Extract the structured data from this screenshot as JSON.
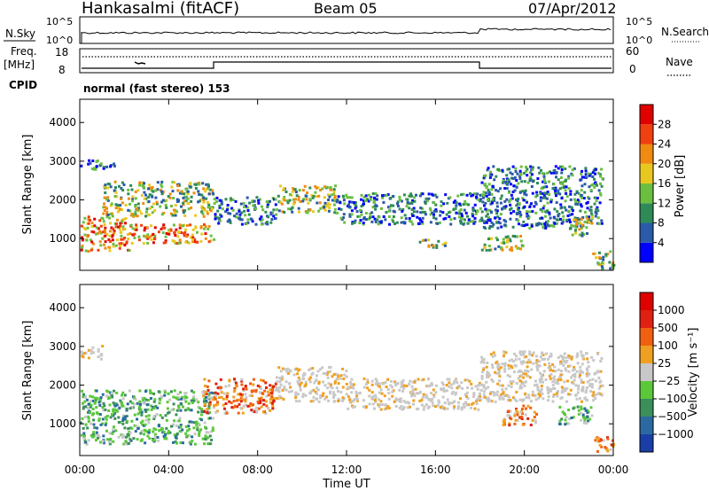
{
  "header": {
    "station": "Hankasalmi (fitACF)",
    "beam": "Beam 05",
    "date": "07/Apr/2012"
  },
  "noise_panel": {
    "left_label": "N.Sky",
    "left_ticks": [
      "10^5",
      "10^0"
    ],
    "right_ticks": [
      "10^5",
      "10^0"
    ],
    "right_label": "N.Search"
  },
  "freq_panel": {
    "left_label_1": "Freq.",
    "left_label_2": "[MHz]",
    "left_ticks": [
      "18",
      "8"
    ],
    "right_ticks": [
      "60",
      "0"
    ],
    "right_label": "Nave",
    "cpid_label": "CPID",
    "mode_text": "normal (fast stereo) 153"
  },
  "chart_data": [
    {
      "type": "heatmap",
      "name": "power",
      "ylabel": "Slant Range [km]",
      "ylim": [
        180,
        4600
      ],
      "yticks": [
        "1000",
        "2000",
        "3000",
        "4000"
      ],
      "xlim_hours": [
        0,
        24
      ],
      "colorbar_label": "Power [dB]",
      "colorbar_ticks": [
        "4",
        "8",
        "12",
        "16",
        "20",
        "24",
        "28"
      ],
      "colorbar_colors": [
        "#0000ff",
        "#2a5aa8",
        "#2e8b57",
        "#6abf40",
        "#e8c820",
        "#f08a10",
        "#f04010",
        "#e00000"
      ],
      "regions": [
        {
          "t": [
            0.0,
            2.2
          ],
          "r": [
            700,
            1600
          ],
          "level": "high"
        },
        {
          "t": [
            2.2,
            6.0
          ],
          "r": [
            900,
            1400
          ],
          "level": "high"
        },
        {
          "t": [
            0.0,
            1.6
          ],
          "r": [
            2800,
            3050
          ],
          "level": "low"
        },
        {
          "t": [
            1.0,
            6.0
          ],
          "r": [
            1600,
            2500
          ],
          "level": "mid"
        },
        {
          "t": [
            6.0,
            8.8
          ],
          "r": [
            1400,
            2100
          ],
          "level": "low"
        },
        {
          "t": [
            8.8,
            11.5
          ],
          "r": [
            1700,
            2400
          ],
          "level": "mid"
        },
        {
          "t": [
            11.5,
            18.0
          ],
          "r": [
            1400,
            2200
          ],
          "level": "low"
        },
        {
          "t": [
            18.0,
            23.5
          ],
          "r": [
            1300,
            2900
          ],
          "level": "low"
        },
        {
          "t": [
            15.2,
            16.5
          ],
          "r": [
            800,
            1000
          ],
          "level": "mid"
        },
        {
          "t": [
            18.0,
            20.0
          ],
          "r": [
            700,
            1100
          ],
          "level": "mid"
        },
        {
          "t": [
            22.0,
            23.0
          ],
          "r": [
            1100,
            1600
          ],
          "level": "mid"
        },
        {
          "t": [
            23.0,
            24.0
          ],
          "r": [
            250,
            700
          ],
          "level": "mid"
        }
      ]
    },
    {
      "type": "heatmap",
      "name": "velocity",
      "ylabel": "Slant Range [km]",
      "ylim": [
        180,
        4600
      ],
      "yticks": [
        "1000",
        "2000",
        "3000",
        "4000"
      ],
      "xlim_hours": [
        0,
        24
      ],
      "colorbar_label": "Velocity [m s⁻¹]",
      "colorbar_ticks": [
        "1000",
        "500",
        "100",
        "25",
        "−25",
        "−100",
        "−500",
        "−1000"
      ],
      "colorbar_colors": [
        "#1a3ea8",
        "#2a6aa0",
        "#3a8f5a",
        "#5ac83a",
        "#c8c8c8",
        "#f0a020",
        "#f06010",
        "#e02010",
        "#e00000"
      ],
      "regions": [
        {
          "t": [
            0.0,
            6.0
          ],
          "r": [
            500,
            1900
          ],
          "level": "green"
        },
        {
          "t": [
            0.0,
            1.0
          ],
          "r": [
            2700,
            3050
          ],
          "level": "grey"
        },
        {
          "t": [
            5.5,
            8.8
          ],
          "r": [
            1300,
            2200
          ],
          "level": "orange"
        },
        {
          "t": [
            8.8,
            12.0
          ],
          "r": [
            1600,
            2500
          ],
          "level": "grey"
        },
        {
          "t": [
            12.0,
            18.0
          ],
          "r": [
            1400,
            2200
          ],
          "level": "grey"
        },
        {
          "t": [
            18.0,
            23.5
          ],
          "r": [
            1600,
            2900
          ],
          "level": "grey"
        },
        {
          "t": [
            19.0,
            20.5
          ],
          "r": [
            1000,
            1500
          ],
          "level": "orange"
        },
        {
          "t": [
            21.5,
            23.0
          ],
          "r": [
            1000,
            1500
          ],
          "level": "green"
        },
        {
          "t": [
            23.0,
            24.0
          ],
          "r": [
            300,
            700
          ],
          "level": "orange"
        }
      ]
    }
  ],
  "x_axis": {
    "ticks": [
      "00:00",
      "04:00",
      "08:00",
      "12:00",
      "16:00",
      "20:00",
      "00:00"
    ],
    "label": "Time UT"
  }
}
